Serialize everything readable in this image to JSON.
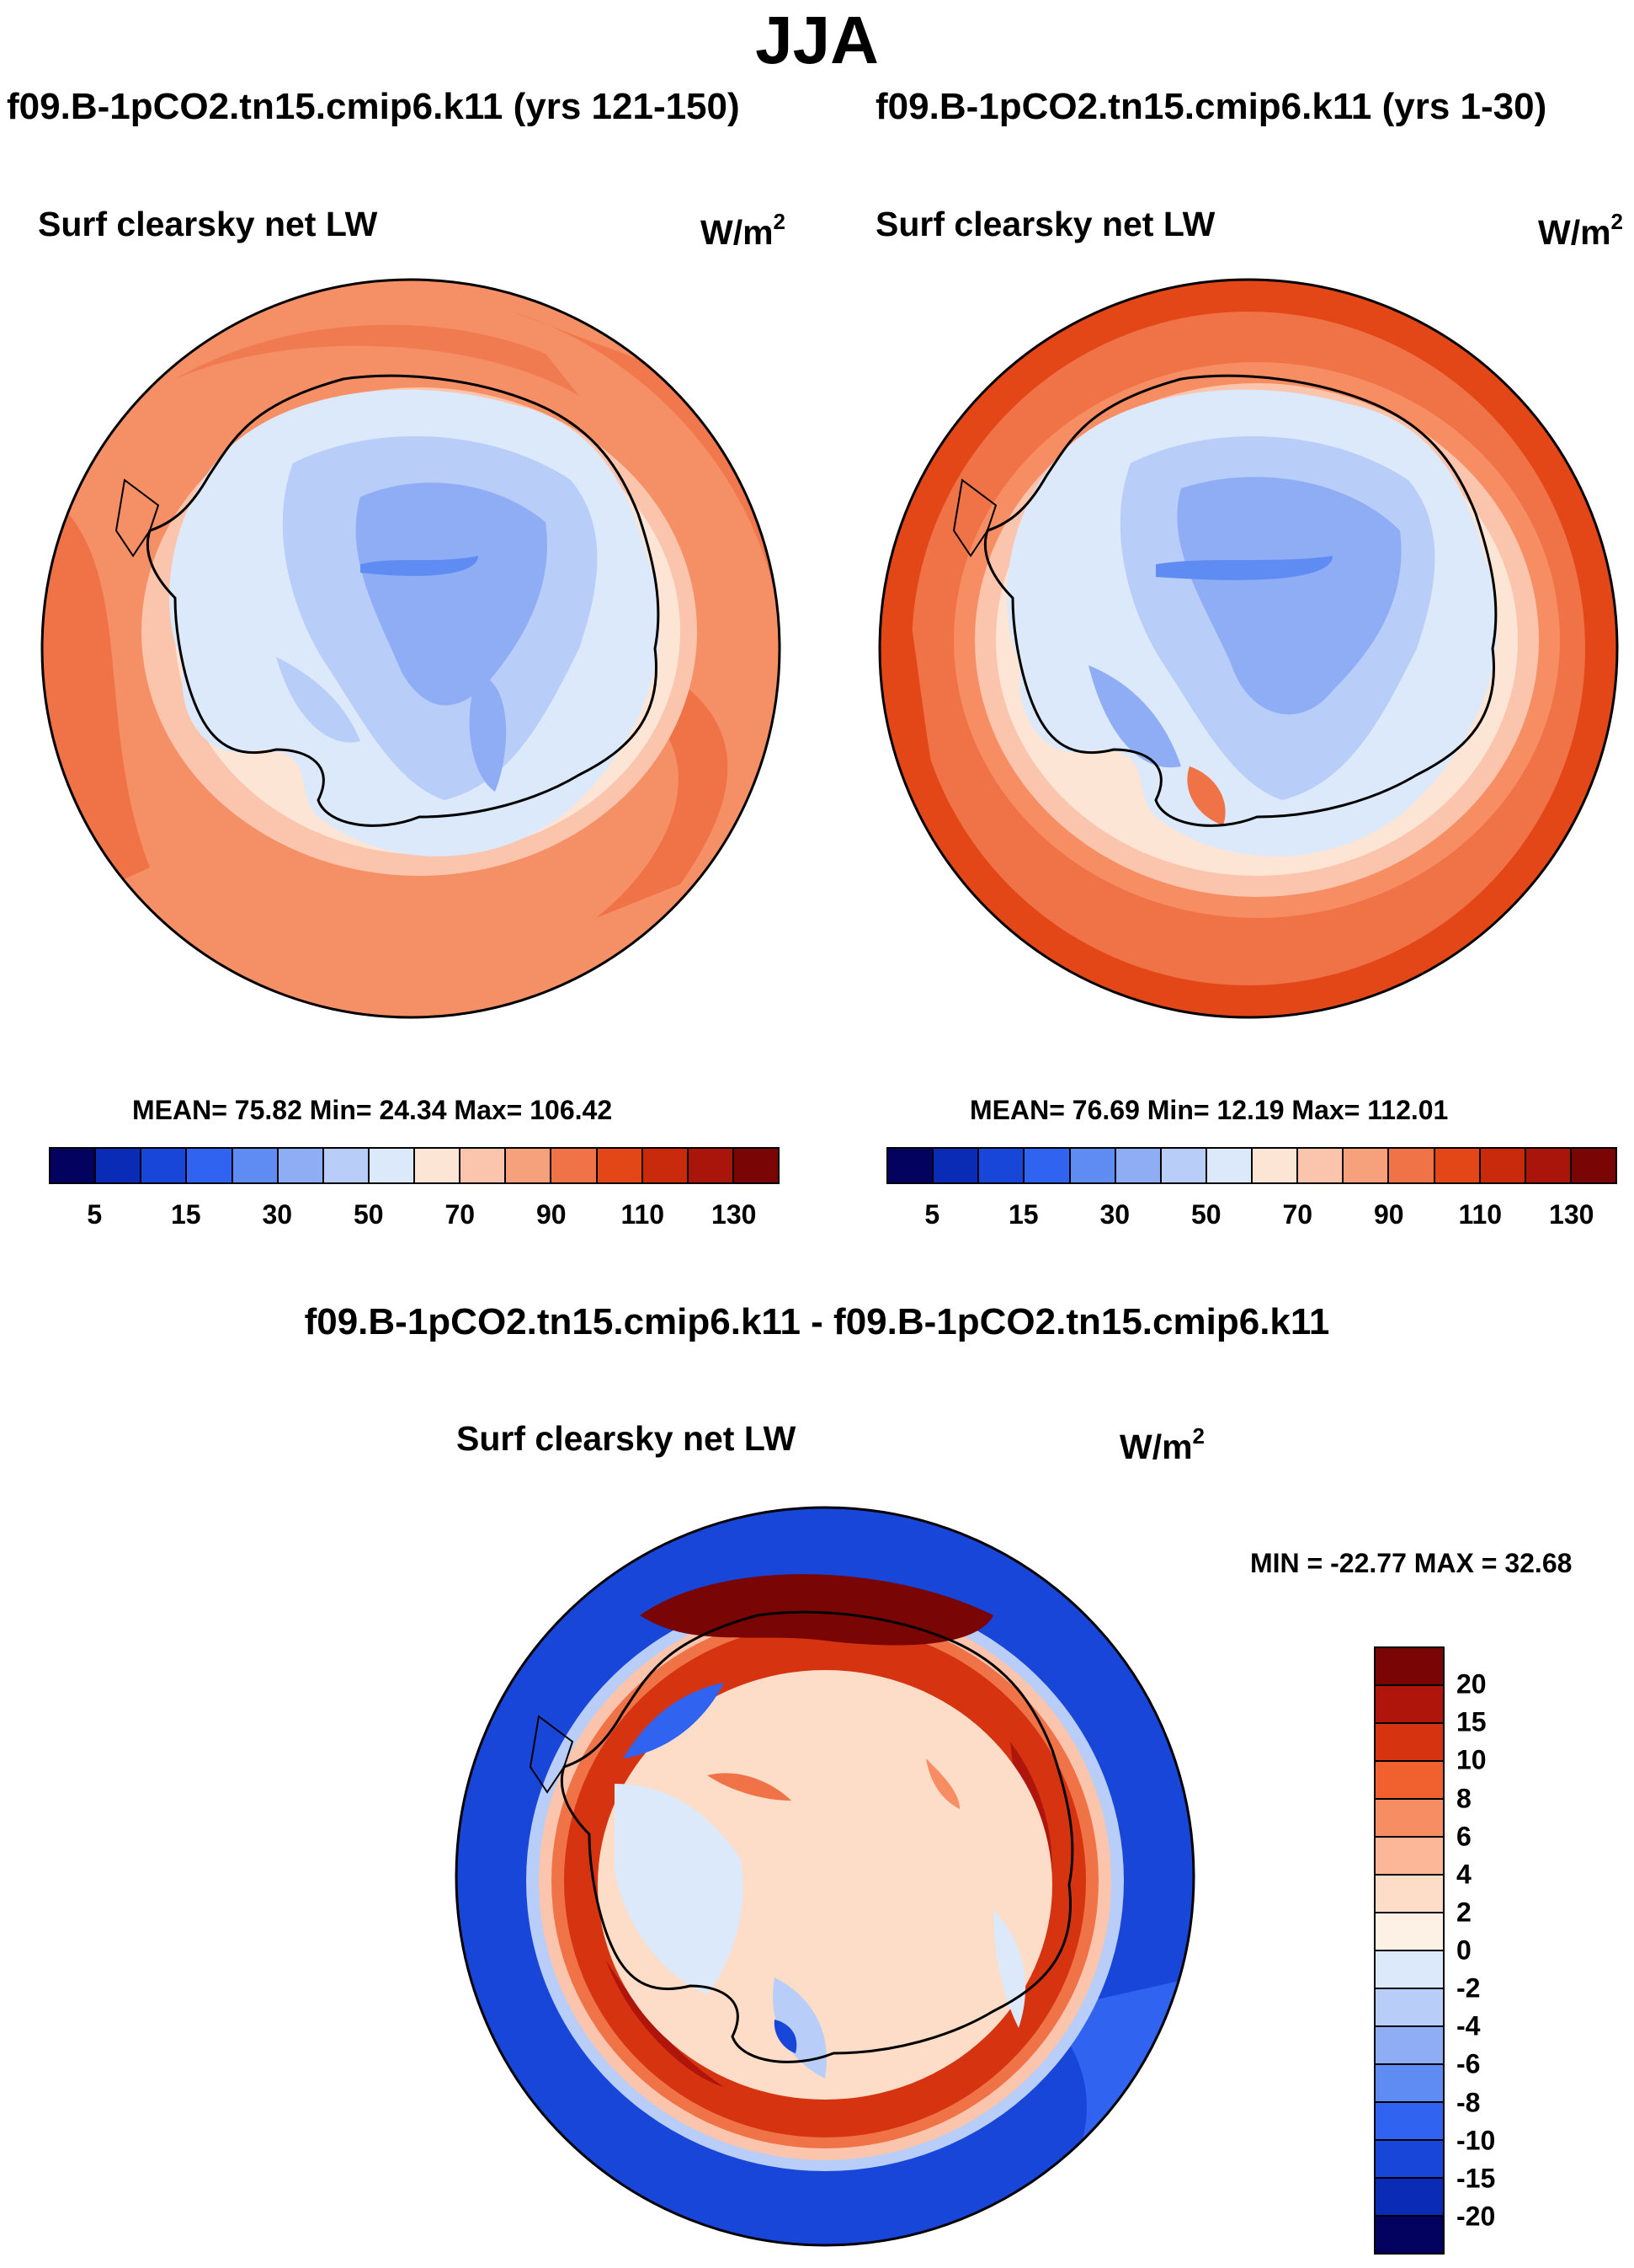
{
  "title": "JJA",
  "panels": {
    "left": {
      "case": "f09.B-1pCO2.tn15.cmip6.k11 (yrs 121-150)",
      "variable": "Surf clearsky net LW",
      "units": "W/m",
      "units_exp": "2",
      "stats_text": "MEAN=  75.82  Min=  24.34  Max= 106.42"
    },
    "right": {
      "case": "f09.B-1pCO2.tn15.cmip6.k11 (yrs 1-30)",
      "variable": "Surf clearsky net LW",
      "units": "W/m",
      "units_exp": "2",
      "stats_text": "MEAN=  76.69  Min=  12.19  Max= 112.01"
    },
    "diff": {
      "case": "f09.B-1pCO2.tn15.cmip6.k11 - f09.B-1pCO2.tn15.cmip6.k11",
      "variable": "Surf clearsky net LW",
      "units": "W/m",
      "units_exp": "2",
      "stats_text": "MIN = -22.77 MAX =  32.68"
    }
  },
  "chart_data": [
    {
      "type": "heatmap",
      "title": "Surf clearsky net LW",
      "case": "f09.B-1pCO2.tn15.cmip6.k11 (yrs 121-150)",
      "season": "JJA",
      "units": "W/m2",
      "mean": 75.82,
      "min": 24.34,
      "max": 106.42,
      "colorbar_ticks": [
        "5",
        "15",
        "30",
        "50",
        "70",
        "90",
        "110",
        "130"
      ],
      "colorbar_levels": [
        5,
        10,
        15,
        20,
        30,
        40,
        50,
        60,
        70,
        80,
        90,
        100,
        110,
        120,
        130
      ],
      "colorbar_colors": [
        "#03025f",
        "#0a2bb5",
        "#1746d9",
        "#2f63f0",
        "#5f8cf2",
        "#8eadf5",
        "#b8cdf8",
        "#dbe9fb",
        "#fde5d6",
        "#fbc5ad",
        "#f7a07c",
        "#f07247",
        "#e34718",
        "#ca2a0c",
        "#aa150b",
        "#7a0505"
      ]
    },
    {
      "type": "heatmap",
      "title": "Surf clearsky net LW",
      "case": "f09.B-1pCO2.tn15.cmip6.k11 (yrs 1-30)",
      "season": "JJA",
      "units": "W/m2",
      "mean": 76.69,
      "min": 12.19,
      "max": 112.01,
      "colorbar_ticks": [
        "5",
        "15",
        "30",
        "50",
        "70",
        "90",
        "110",
        "130"
      ],
      "colorbar_levels": [
        5,
        10,
        15,
        20,
        30,
        40,
        50,
        60,
        70,
        80,
        90,
        100,
        110,
        120,
        130
      ],
      "colorbar_colors": [
        "#03025f",
        "#0a2bb5",
        "#1746d9",
        "#2f63f0",
        "#5f8cf2",
        "#8eadf5",
        "#b8cdf8",
        "#dbe9fb",
        "#fde5d6",
        "#fbc5ad",
        "#f7a07c",
        "#f07247",
        "#e34718",
        "#ca2a0c",
        "#aa150b",
        "#7a0505"
      ]
    },
    {
      "type": "heatmap",
      "title": "Surf clearsky net LW",
      "case": "f09.B-1pCO2.tn15.cmip6.k11 - f09.B-1pCO2.tn15.cmip6.k11",
      "season": "JJA",
      "units": "W/m2",
      "min": -22.77,
      "max": 32.68,
      "colorbar_ticks": [
        "20",
        "15",
        "10",
        "8",
        "6",
        "4",
        "2",
        "0",
        "-2",
        "-4",
        "-6",
        "-8",
        "-10",
        "-15",
        "-20"
      ],
      "colorbar_colors": [
        "#7a0505",
        "#b0150b",
        "#d63411",
        "#f0612f",
        "#f78d62",
        "#fbb797",
        "#fdddc8",
        "#fdf1e6",
        "#dbe9fb",
        "#b8cdf8",
        "#8eadf5",
        "#5f8cf2",
        "#2f63f0",
        "#1746d9",
        "#0a2bb5",
        "#03025f"
      ]
    }
  ]
}
